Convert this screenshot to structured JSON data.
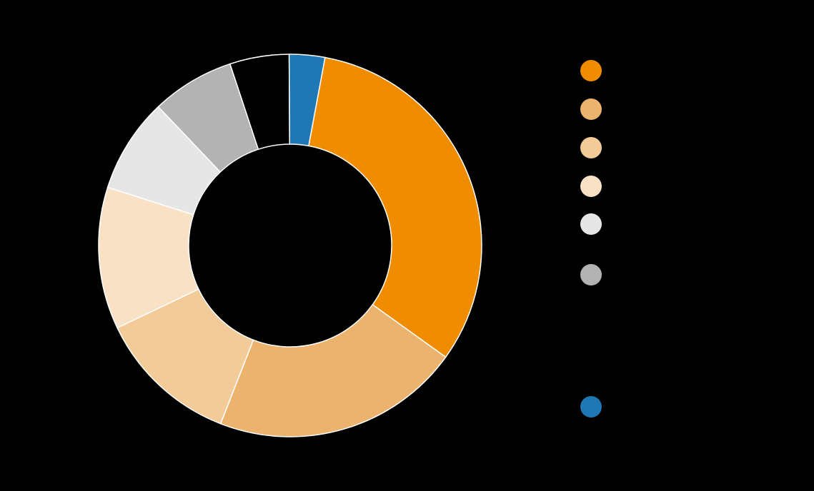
{
  "chart_data": {
    "type": "pie",
    "categories": [
      null,
      null,
      null,
      null,
      null,
      null,
      null,
      null
    ],
    "values": [
      32,
      21,
      12,
      12,
      8,
      7,
      5,
      3
    ],
    "colors": [
      "#f08c00",
      "#ebb36d",
      "#f2cb98",
      "#f8e1c4",
      "#e6e6e6",
      "#b3b3b3",
      "#000000",
      "#1f77b4"
    ]
  }
}
